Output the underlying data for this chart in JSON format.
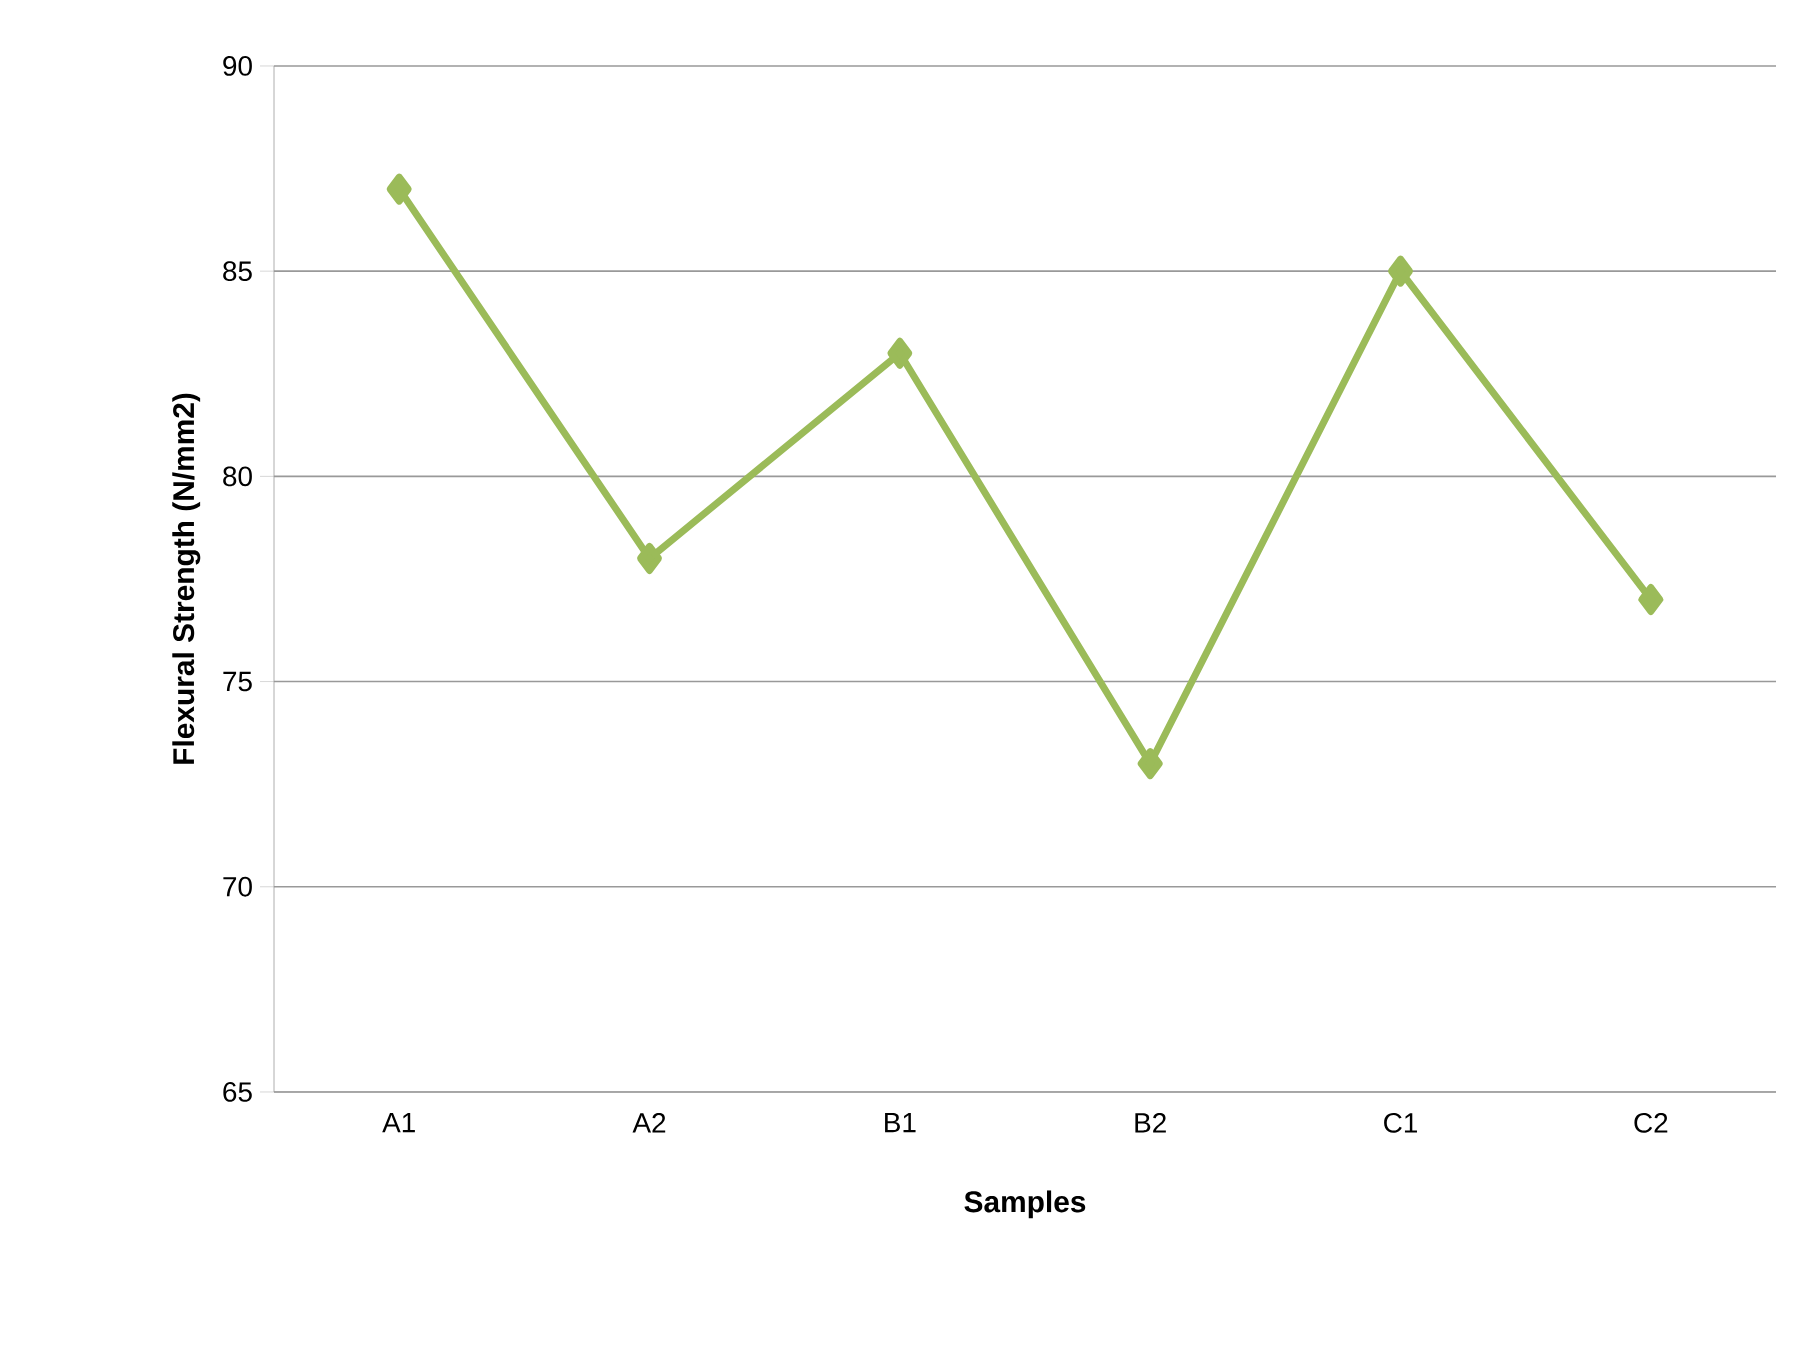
{
  "chart_data": {
    "type": "line",
    "xlabel": "Samples",
    "ylabel": "Flexural Strength (N/mm2)",
    "categories": [
      "A1",
      "A2",
      "B1",
      "B2",
      "C1",
      "C2"
    ],
    "values": [
      87,
      78,
      83,
      73,
      85,
      77
    ],
    "color": "#9bbb59",
    "ylim": [
      65,
      90
    ],
    "yticks": [
      65,
      70,
      75,
      80,
      85,
      90
    ],
    "grid": "y",
    "marker": "diamond",
    "line_style": "solid"
  }
}
